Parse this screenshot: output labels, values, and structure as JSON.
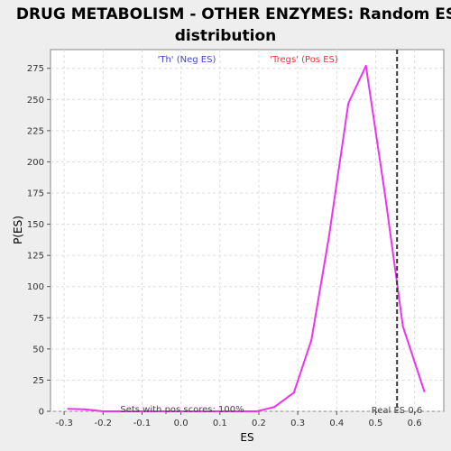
{
  "chart_data": {
    "type": "line",
    "title": [
      "DRUG METABOLISM - OTHER ENZYMES: Random ES",
      "distribution"
    ],
    "xlabel": "ES",
    "ylabel": "P(ES)",
    "xlim": [
      -0.335,
      0.675
    ],
    "ylim": [
      0,
      290
    ],
    "x_ticks": [
      -0.3,
      -0.2,
      -0.1,
      0.0,
      0.1,
      0.2,
      0.3,
      0.4,
      0.5,
      0.6
    ],
    "y_ticks": [
      0,
      25,
      50,
      75,
      100,
      125,
      150,
      175,
      200,
      225,
      250,
      275
    ],
    "grid": true,
    "series": [
      {
        "color": "#ee33ee",
        "x": [
          -0.29,
          -0.245,
          -0.2,
          -0.15,
          -0.1,
          -0.05,
          0.0,
          0.05,
          0.1,
          0.15,
          0.195,
          0.24,
          0.29,
          0.335,
          0.38,
          0.43,
          0.475,
          0.525,
          0.57,
          0.625
        ],
        "y": [
          2,
          1.5,
          0,
          0,
          0,
          0,
          0,
          0,
          0,
          0,
          0,
          3.5,
          15,
          57,
          140,
          247,
          277,
          172,
          68,
          16
        ]
      }
    ],
    "real_es": {
      "x": 0.555,
      "label": "Real ES 0.6",
      "color": "#333333"
    },
    "annotations": {
      "neg_label": "'Th' (Neg ES)",
      "pos_label": "'Tregs' (Pos ES)",
      "sets_label": "Sets with pos scores: 100%",
      "neg_color": "#4444cc",
      "pos_color": "#ee3333"
    }
  }
}
